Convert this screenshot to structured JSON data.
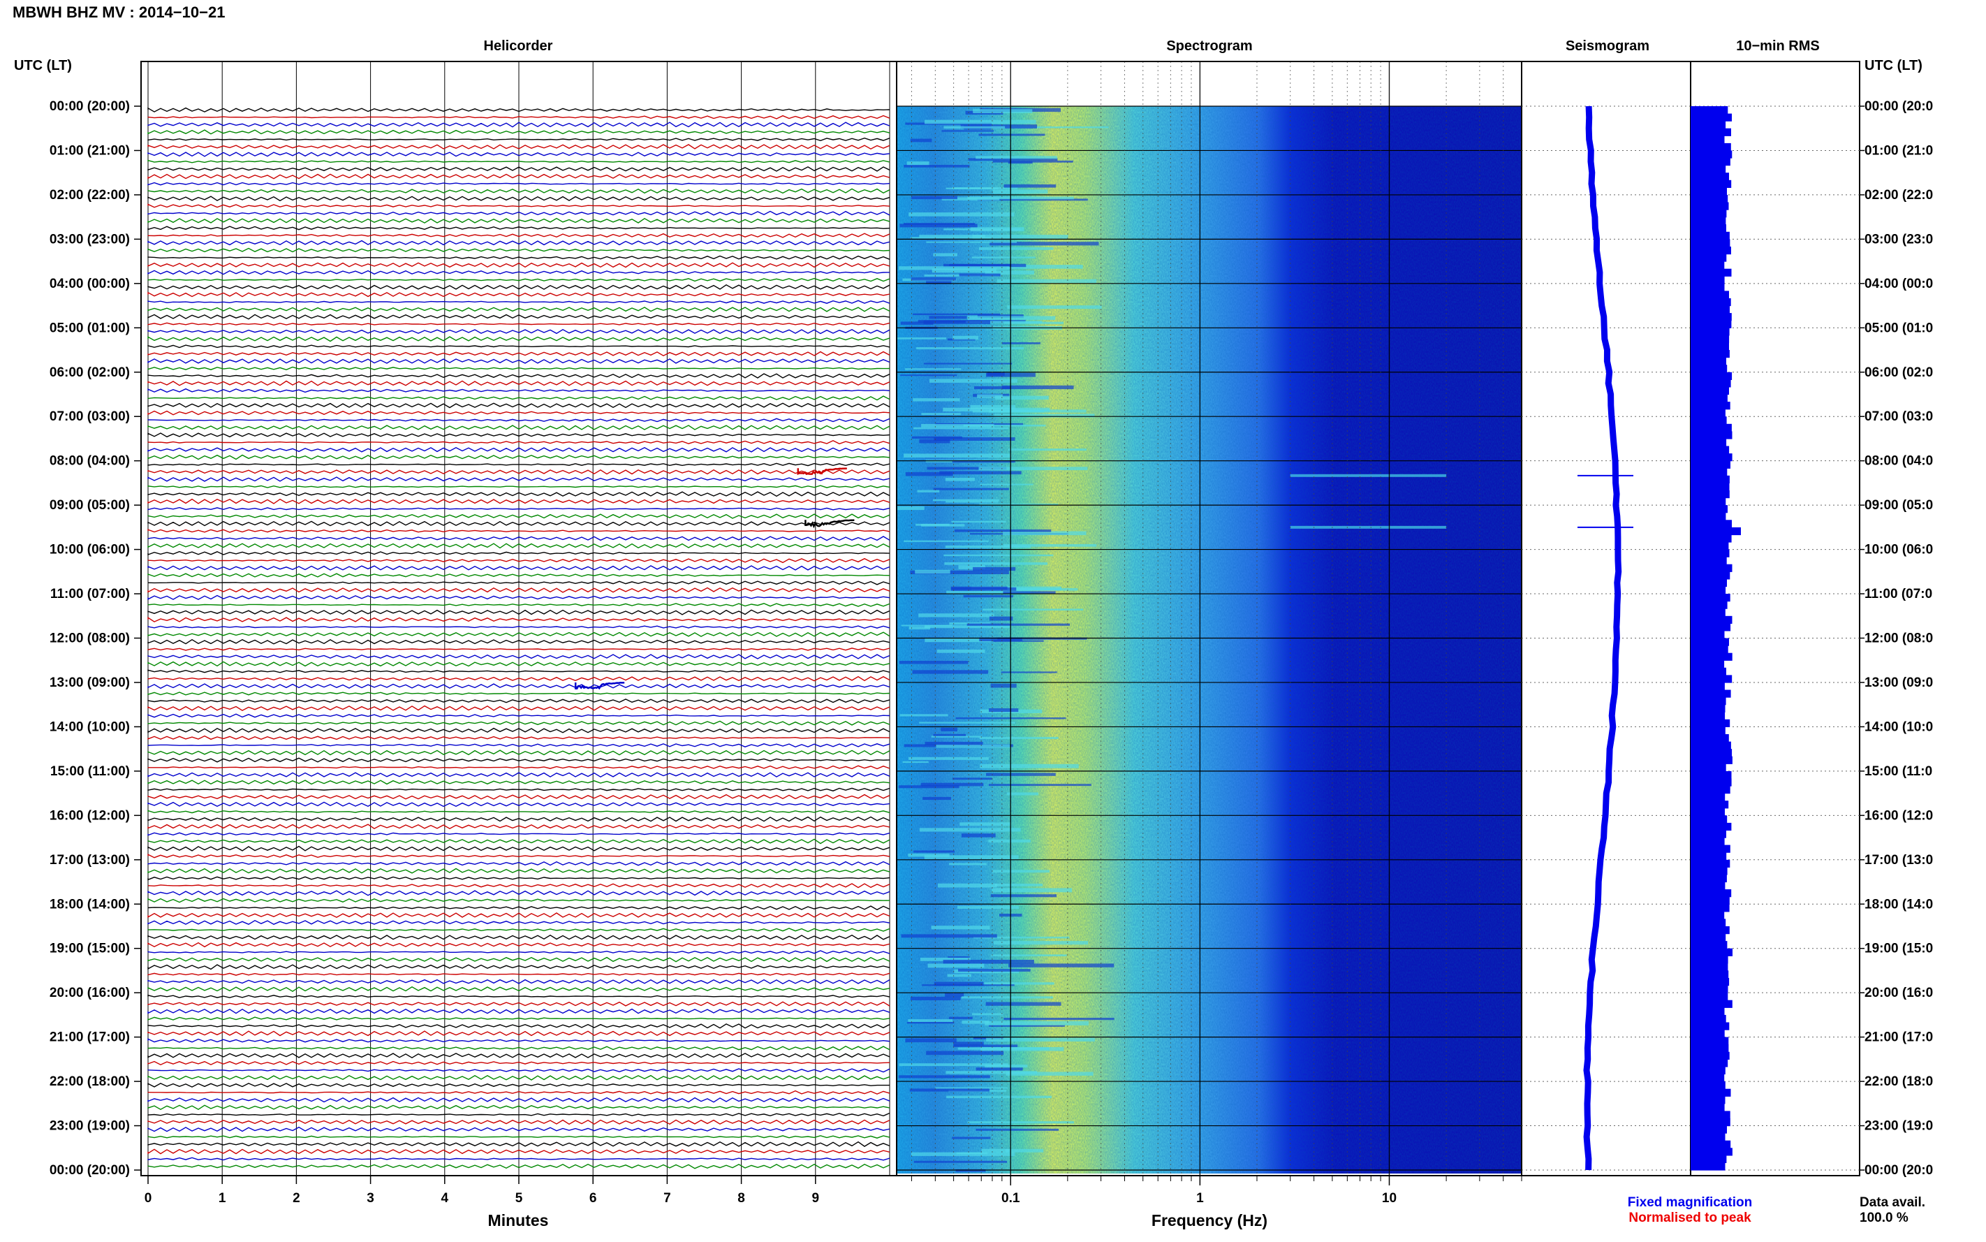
{
  "header": {
    "title": "MBWH BHZ MV : 2014−10−21",
    "utc_label_left": "UTC (LT)",
    "utc_label_right": "UTC (LT)"
  },
  "panels": {
    "helicorder": "Helicorder",
    "spectrogram": "Spectrogram",
    "seismogram": "Seismogram",
    "rms": "10−min RMS"
  },
  "hour_labels": [
    "00:00 (20:00)",
    "01:00 (21:00)",
    "02:00 (22:00)",
    "03:00 (23:00)",
    "04:00 (00:00)",
    "05:00 (01:00)",
    "06:00 (02:00)",
    "07:00 (03:00)",
    "08:00 (04:00)",
    "09:00 (05:00)",
    "10:00 (06:00)",
    "11:00 (07:00)",
    "12:00 (08:00)",
    "13:00 (09:00)",
    "14:00 (10:00)",
    "15:00 (11:00)",
    "16:00 (12:00)",
    "17:00 (13:00)",
    "18:00 (14:00)",
    "19:00 (15:00)",
    "20:00 (16:00)",
    "21:00 (17:00)",
    "22:00 (18:00)",
    "23:00 (19:00)",
    "00:00 (20:00)"
  ],
  "right_hour_labels": [
    "00:00 (20:0",
    "01:00 (21:0",
    "02:00 (22:0",
    "03:00 (23:0",
    "04:00 (00:0",
    "05:00 (01:0",
    "06:00 (02:0",
    "07:00 (03:0",
    "08:00 (04:0",
    "09:00 (05:0",
    "10:00 (06:0",
    "11:00 (07:0",
    "12:00 (08:0",
    "13:00 (09:0",
    "14:00 (10:0",
    "15:00 (11:0",
    "16:00 (12:0",
    "17:00 (13:0",
    "18:00 (14:0",
    "19:00 (15:0",
    "20:00 (16:0",
    "21:00 (17:0",
    "22:00 (18:0",
    "23:00 (19:0",
    "00:00 (20:0"
  ],
  "x_axis": {
    "minutes_ticks": [
      "0",
      "1",
      "2",
      "3",
      "4",
      "5",
      "6",
      "7",
      "8",
      "9"
    ],
    "minutes_label": "Minutes",
    "freq_ticks": [
      "0.1",
      "1",
      "10"
    ],
    "freq_label": "Frequency (Hz)"
  },
  "legend": {
    "fixed": "Fixed magnification",
    "normalised": "Normalised to peak",
    "fixed_color": "#0000ee",
    "normalised_color": "#ee0000"
  },
  "data_avail": {
    "label": "Data avail.",
    "value": "100.0 %"
  },
  "chart_data": {
    "type": "heatmap",
    "title": "MBWH BHZ MV : 2014−10−21",
    "helicorder": {
      "minutes_range": [
        0,
        10
      ],
      "lines_per_hour": 6,
      "trace_colors": [
        "#000000",
        "#cc0000",
        "#0000cc",
        "#008800"
      ],
      "events": [
        {
          "time_utc": "08:10",
          "minute": 9.0,
          "color": "#cc0000"
        },
        {
          "time_utc": "09:20",
          "minute": 9.1,
          "color": "#000000"
        },
        {
          "time_utc": "13:00",
          "minute": 6.0,
          "color": "#0000cc"
        }
      ]
    },
    "spectrogram": {
      "x_scale": "log",
      "xlim_hz": [
        0.025,
        50
      ],
      "peak_band_hz": [
        0.15,
        0.3
      ],
      "colormap": [
        "#00008b",
        "#0033ff",
        "#1e90ff",
        "#40e0d0",
        "#adff2f",
        "#ffff66"
      ]
    },
    "seismogram": {
      "color": "#0000ee",
      "spikes_utc": [
        "08:20",
        "09:30"
      ]
    },
    "rms": {
      "color": "#0000ee",
      "bin_minutes": 10,
      "peak_utc": "09:30"
    }
  }
}
